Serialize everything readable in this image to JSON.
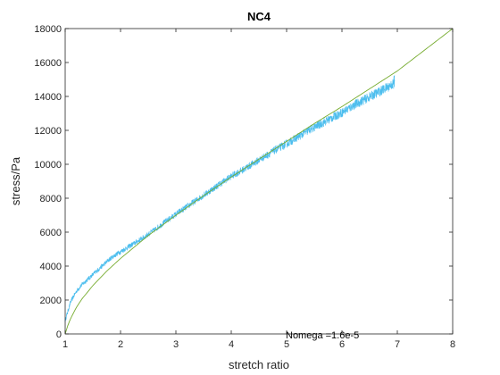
{
  "chart_data": {
    "type": "line",
    "title": "NC4",
    "xlabel": "stretch ratio",
    "ylabel": "stress/Pa",
    "xlim": [
      1,
      8
    ],
    "ylim": [
      0,
      18000
    ],
    "xticks": [
      "1",
      "2",
      "3",
      "4",
      "5",
      "6",
      "7",
      "8"
    ],
    "yticks": [
      "0",
      "2000",
      "4000",
      "6000",
      "8000",
      "10000",
      "12000",
      "14000",
      "16000",
      "18000"
    ],
    "grid": false,
    "annotation": "Nomega =1.6e-5",
    "colors": {
      "measured": "#4dbeee",
      "model": "#77ac30"
    },
    "series": [
      {
        "style": "noisy",
        "color": "#4dbeee",
        "x": [
          1.0,
          1.1,
          1.2,
          1.3,
          1.4,
          1.5,
          1.6,
          1.7,
          1.8,
          1.9,
          2.0,
          2.2,
          2.4,
          2.6,
          2.8,
          3.0,
          3.2,
          3.4,
          3.6,
          3.8,
          4.0,
          4.2,
          4.4,
          4.6,
          4.8,
          5.0,
          5.2,
          5.4,
          5.6,
          5.8,
          6.0,
          6.2,
          6.4,
          6.6,
          6.8,
          6.95
        ],
        "y": [
          800,
          1900,
          2500,
          2900,
          3200,
          3500,
          3800,
          4100,
          4400,
          4650,
          4850,
          5250,
          5650,
          6100,
          6600,
          7050,
          7500,
          7950,
          8400,
          8850,
          9300,
          9650,
          10050,
          10450,
          10850,
          11200,
          11600,
          12000,
          12350,
          12700,
          13050,
          13450,
          13800,
          14150,
          14500,
          14800
        ]
      },
      {
        "style": "smooth",
        "color": "#77ac30",
        "x": [
          1.0,
          1.05,
          1.1,
          1.2,
          1.3,
          1.5,
          1.75,
          2.0,
          2.5,
          3.0,
          3.5,
          4.0,
          4.5,
          5.0,
          5.5,
          6.0,
          6.5,
          7.0,
          7.5,
          8.0
        ],
        "y": [
          0,
          520,
          920,
          1550,
          2050,
          2850,
          3700,
          4450,
          5800,
          7000,
          8150,
          9250,
          10300,
          11350,
          12400,
          13400,
          14450,
          15500,
          16750,
          18000
        ]
      }
    ]
  }
}
